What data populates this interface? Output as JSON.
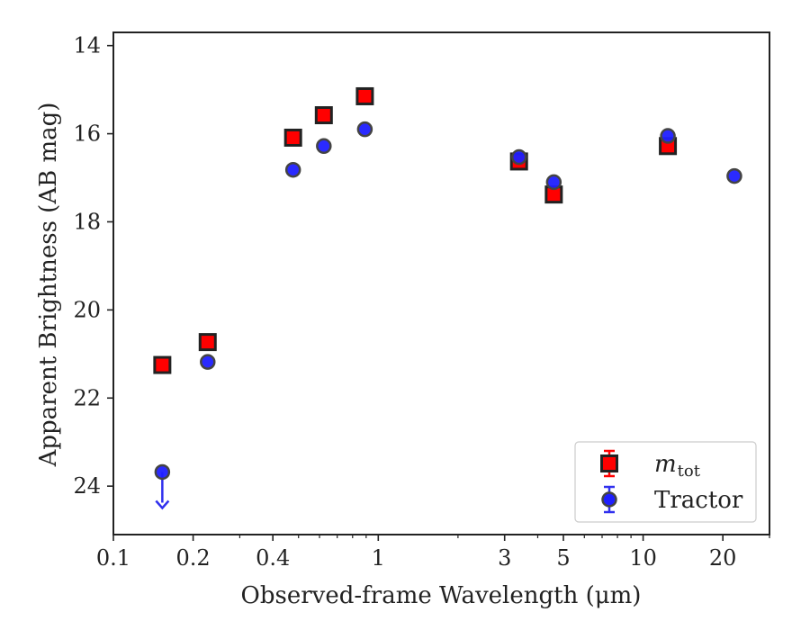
{
  "chart_data": {
    "type": "scatter",
    "xlabel": "Observed-frame Wavelength (μm)",
    "ylabel": "Apparent Brightness (AB mag)",
    "x_scale": "log",
    "xlim": [
      0.1,
      30
    ],
    "ylim": [
      25.1,
      13.7
    ],
    "y_inverted": true,
    "x_ticks": [
      {
        "value": 0.1,
        "label": "0.1"
      },
      {
        "value": 0.2,
        "label": "0.2"
      },
      {
        "value": 0.4,
        "label": "0.4"
      },
      {
        "value": 1,
        "label": "1"
      },
      {
        "value": 3,
        "label": "3"
      },
      {
        "value": 5,
        "label": "5"
      },
      {
        "value": 10,
        "label": "10"
      },
      {
        "value": 20,
        "label": "20"
      }
    ],
    "y_ticks": [
      {
        "value": 14,
        "label": "14"
      },
      {
        "value": 16,
        "label": "16"
      },
      {
        "value": 18,
        "label": "18"
      },
      {
        "value": 20,
        "label": "20"
      },
      {
        "value": 22,
        "label": "22"
      },
      {
        "value": 24,
        "label": "24"
      }
    ],
    "legend_position": "lower-right",
    "grid": false,
    "series": [
      {
        "name": "m_tot",
        "legend_label": {
          "main": "m",
          "sub": "tot"
        },
        "marker": "square",
        "color": "#ff0000",
        "edge_color": "#222222",
        "points": [
          {
            "x": 0.153,
            "y": 21.25
          },
          {
            "x": 0.227,
            "y": 20.73
          },
          {
            "x": 0.477,
            "y": 16.09
          },
          {
            "x": 0.623,
            "y": 15.58
          },
          {
            "x": 0.89,
            "y": 15.15
          },
          {
            "x": 3.4,
            "y": 16.63
          },
          {
            "x": 4.6,
            "y": 17.38
          },
          {
            "x": 12.4,
            "y": 16.28
          }
        ]
      },
      {
        "name": "Tractor",
        "legend_label": {
          "main": "Tractor",
          "sub": ""
        },
        "marker": "circle",
        "color": "#1f1fff",
        "edge_color": "#444444",
        "points": [
          {
            "x": 0.153,
            "y": 23.68,
            "upper_limit": true
          },
          {
            "x": 0.227,
            "y": 21.18
          },
          {
            "x": 0.477,
            "y": 16.82
          },
          {
            "x": 0.623,
            "y": 16.28
          },
          {
            "x": 0.89,
            "y": 15.9
          },
          {
            "x": 3.4,
            "y": 16.53
          },
          {
            "x": 4.6,
            "y": 17.1
          },
          {
            "x": 12.4,
            "y": 16.05
          },
          {
            "x": 22.1,
            "y": 16.96
          }
        ]
      }
    ]
  }
}
